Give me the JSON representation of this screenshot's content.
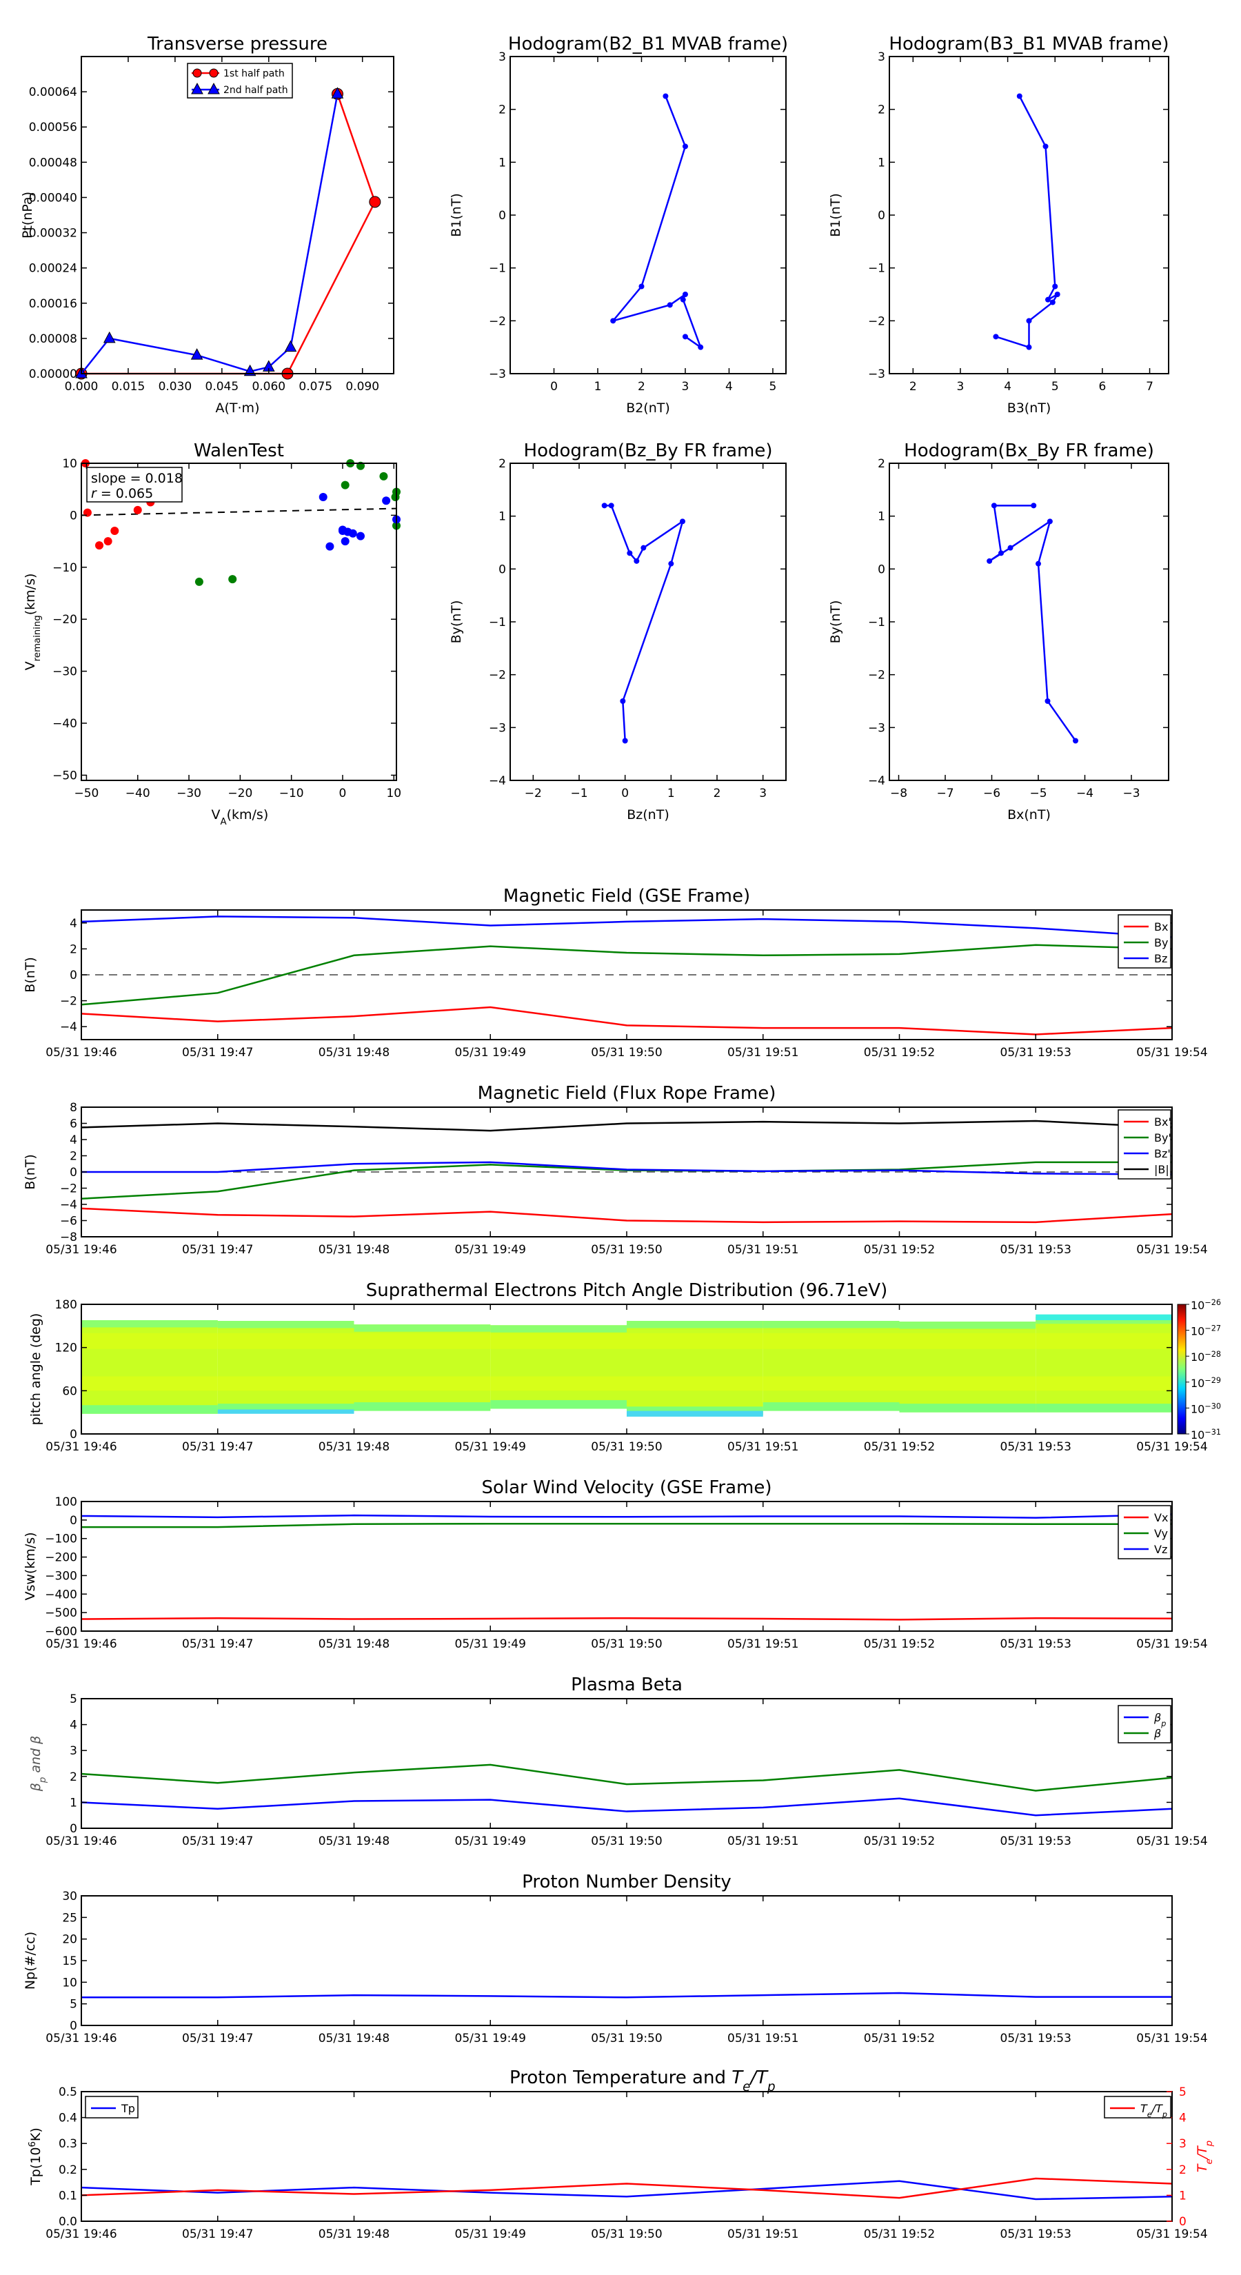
{
  "colors": {
    "red": "#ff0000",
    "green": "#008000",
    "blue": "#0000ff",
    "black": "#000000",
    "gray": "#444444"
  },
  "time_ticks": [
    "05/31 19:46",
    "05/31 19:47",
    "05/31 19:48",
    "05/31 19:49",
    "05/31 19:50",
    "05/31 19:51",
    "05/31 19:52",
    "05/31 19:53",
    "05/31 19:54"
  ],
  "chart_data": [
    {
      "id": "tp",
      "type": "line",
      "title": "Transverse pressure",
      "xlabel": "A(T·m)",
      "ylabel": "Pt(nPa)",
      "xlim": [
        0.0,
        0.1
      ],
      "ylim": [
        0.0,
        0.00072
      ],
      "xticks": [
        "0.000",
        "0.015",
        "0.030",
        "0.045",
        "0.060",
        "0.075",
        "0.090"
      ],
      "xtick_values": [
        0.0,
        0.015,
        0.03,
        0.045,
        0.06,
        0.075,
        0.09
      ],
      "yticks": [
        "0.00000",
        "0.00008",
        "0.00016",
        "0.00024",
        "0.00032",
        "0.00040",
        "0.00048",
        "0.00056",
        "0.00064"
      ],
      "ytick_values": [
        0.0,
        8e-05,
        0.00016,
        0.00024,
        0.00032,
        0.0004,
        0.00048,
        0.00056,
        0.00064
      ],
      "legend": "upper-center",
      "series": [
        {
          "name": "1st half path",
          "color": "#ff0000",
          "marker": "circle",
          "x": [
            0.0,
            0.066,
            0.094,
            0.082
          ],
          "y": [
            0.0,
            0.0,
            0.00039,
            0.000635
          ]
        },
        {
          "name": "2nd half path",
          "color": "#0000ff",
          "marker": "triangle",
          "x": [
            0.082,
            0.067,
            0.06,
            0.054,
            0.037,
            0.009,
            0.0
          ],
          "y": [
            0.000635,
            6e-05,
            1.5e-05,
            5e-06,
            4.2e-05,
            8e-05,
            0.0
          ]
        }
      ]
    },
    {
      "id": "h21",
      "type": "line",
      "title": "Hodogram(B2_B1 MVAB frame)",
      "xlabel": "B2(nT)",
      "ylabel": "B1(nT)",
      "xlim": [
        -1,
        5.3
      ],
      "ylim": [
        -3,
        3
      ],
      "xticks": [
        "0",
        "1",
        "2",
        "3",
        "4",
        "5"
      ],
      "xtick_values": [
        0,
        1,
        2,
        3,
        4,
        5
      ],
      "yticks": [
        "−3",
        "−2",
        "−1",
        "0",
        "1",
        "2",
        "3"
      ],
      "ytick_values": [
        -3,
        -2,
        -1,
        0,
        1,
        2,
        3
      ],
      "series": [
        {
          "color": "#0000ff",
          "marker": "dot",
          "x": [
            2.55,
            3.0,
            2.0,
            1.35,
            2.65,
            3.0,
            2.95,
            3.35,
            3.0
          ],
          "y": [
            2.25,
            1.3,
            -1.35,
            -2.0,
            -1.7,
            -1.5,
            -1.6,
            -2.5,
            -2.3
          ]
        }
      ]
    },
    {
      "id": "h31",
      "type": "line",
      "title": "Hodogram(B3_B1 MVAB frame)",
      "xlabel": "B3(nT)",
      "ylabel": "B1(nT)",
      "xlim": [
        1.5,
        7.4
      ],
      "ylim": [
        -3,
        3
      ],
      "xticks": [
        "2",
        "3",
        "4",
        "5",
        "6",
        "7"
      ],
      "xtick_values": [
        2,
        3,
        4,
        5,
        6,
        7
      ],
      "yticks": [
        "−3",
        "−2",
        "−1",
        "0",
        "1",
        "2",
        "3"
      ],
      "ytick_values": [
        -3,
        -2,
        -1,
        0,
        1,
        2,
        3
      ],
      "series": [
        {
          "color": "#0000ff",
          "marker": "dot",
          "x": [
            4.25,
            4.8,
            5.0,
            4.85,
            5.05,
            4.95,
            4.45,
            4.45,
            3.75
          ],
          "y": [
            2.25,
            1.3,
            -1.35,
            -1.6,
            -1.5,
            -1.65,
            -2.0,
            -2.5,
            -2.3
          ]
        }
      ]
    },
    {
      "id": "walen",
      "type": "scatter",
      "title": "WalenTest",
      "xlabel": "V",
      "xlabel_sub": "A",
      "xlabel_unit": "(km/s)",
      "ylabel": "V",
      "ylabel_sub": "remaining",
      "ylabel_unit": "(km/s)",
      "xlim": [
        -51,
        10.5
      ],
      "ylim": [
        -51,
        10
      ],
      "xticks": [
        "−50",
        "−40",
        "−30",
        "−20",
        "−10",
        "0",
        "10"
      ],
      "xtick_values": [
        -50,
        -40,
        -30,
        -20,
        -10,
        0,
        10
      ],
      "yticks": [
        "−50",
        "−40",
        "−30",
        "−20",
        "−10",
        "0",
        "10"
      ],
      "ytick_values": [
        -50,
        -40,
        -30,
        -20,
        -10,
        0,
        10
      ],
      "annotations": [
        "slope = 0.018",
        "r = 0.065"
      ],
      "fit_line": {
        "x": [
          -51,
          10.5
        ],
        "y": [
          0.0,
          1.3
        ]
      },
      "series": [
        {
          "color": "#ff0000",
          "x": [
            -50.2,
            -49.8,
            -47.5,
            -45.8,
            -44.5,
            -40.0,
            -37.5
          ],
          "y": [
            10.0,
            0.5,
            -5.8,
            -5.0,
            -3.0,
            1.0,
            2.5
          ]
        },
        {
          "color": "#008000",
          "x": [
            -28.0,
            -21.5,
            0.5,
            1.5,
            3.5,
            8.0,
            10.3,
            10.5,
            11.0
          ],
          "y": [
            -12.8,
            -12.3,
            5.8,
            10.0,
            9.5,
            7.5,
            3.5,
            -2.0,
            4.5
          ]
        },
        {
          "color": "#0000ff",
          "x": [
            -3.8,
            -2.5,
            0.0,
            0.5,
            1.0,
            2.0,
            3.5,
            8.5,
            10.5,
            0.0
          ],
          "y": [
            3.5,
            -6.0,
            -3.0,
            -5.0,
            -3.2,
            -3.5,
            -4.0,
            2.8,
            -0.8,
            -2.8
          ]
        }
      ]
    },
    {
      "id": "hzy",
      "type": "line",
      "title": "Hodogram(Bz_By FR frame)",
      "xlabel": "Bz(nT)",
      "ylabel": "By(nT)",
      "xlim": [
        -2.5,
        3.5
      ],
      "ylim": [
        -4,
        2
      ],
      "xticks": [
        "−2",
        "−1",
        "0",
        "1",
        "2",
        "3"
      ],
      "xtick_values": [
        -2,
        -1,
        0,
        1,
        2,
        3
      ],
      "yticks": [
        "−4",
        "−3",
        "−2",
        "−1",
        "0",
        "1",
        "2"
      ],
      "ytick_values": [
        -4,
        -3,
        -2,
        -1,
        0,
        1,
        2
      ],
      "series": [
        {
          "color": "#0000ff",
          "marker": "dot",
          "x": [
            -0.45,
            -0.3,
            0.1,
            0.25,
            0.4,
            1.25,
            1.0,
            -0.05,
            -0.0
          ],
          "y": [
            1.2,
            1.2,
            0.3,
            0.15,
            0.4,
            0.9,
            0.1,
            -2.5,
            -3.25
          ]
        }
      ]
    },
    {
      "id": "hxy",
      "type": "line",
      "title": "Hodogram(Bx_By FR frame)",
      "xlabel": "Bx(nT)",
      "ylabel": "By(nT)",
      "xlim": [
        -8.2,
        -2.2
      ],
      "ylim": [
        -4,
        2
      ],
      "xticks": [
        "−8",
        "−7",
        "−6",
        "−5",
        "−4",
        "−3"
      ],
      "xtick_values": [
        -8,
        -7,
        -6,
        -5,
        -4,
        -3
      ],
      "yticks": [
        "−4",
        "−3",
        "−2",
        "−1",
        "0",
        "1",
        "2"
      ],
      "ytick_values": [
        -4,
        -3,
        -2,
        -1,
        0,
        1,
        2
      ],
      "series": [
        {
          "color": "#0000ff",
          "marker": "dot",
          "x": [
            -5.1,
            -5.95,
            -5.8,
            -6.05,
            -5.6,
            -4.75,
            -5.0,
            -4.8,
            -4.2
          ],
          "y": [
            1.2,
            1.2,
            0.3,
            0.15,
            0.4,
            0.9,
            0.1,
            -2.5,
            -3.25
          ]
        }
      ]
    },
    {
      "id": "mfgse",
      "type": "line",
      "title": "Magnetic Field (GSE Frame)",
      "ylabel": "B(nT)",
      "ylim": [
        -5,
        5
      ],
      "yticks": [
        "−4",
        "−2",
        "0",
        "2",
        "4"
      ],
      "ytick_values": [
        -4,
        -2,
        0,
        2,
        4
      ],
      "zero_line": true,
      "legend": "right",
      "series": [
        {
          "name": "Bx",
          "color": "#ff0000",
          "values": [
            -3.0,
            -3.6,
            -3.2,
            -2.5,
            -3.9,
            -4.1,
            -4.1,
            -4.6,
            -4.1
          ]
        },
        {
          "name": "By",
          "color": "#008000",
          "values": [
            -2.3,
            -1.4,
            1.5,
            2.2,
            1.7,
            1.5,
            1.6,
            2.3,
            2.0
          ]
        },
        {
          "name": "Bz",
          "color": "#0000ff",
          "values": [
            4.1,
            4.5,
            4.4,
            3.8,
            4.1,
            4.3,
            4.1,
            3.6,
            2.9
          ]
        }
      ]
    },
    {
      "id": "mffr",
      "type": "line",
      "title": "Magnetic Field (Flux Rope Frame)",
      "ylabel": "B(nT)",
      "ylim": [
        -8,
        8
      ],
      "yticks": [
        "−8",
        "−6",
        "−4",
        "−2",
        "0",
        "2",
        "4",
        "6",
        "8"
      ],
      "ytick_values": [
        -8,
        -6,
        -4,
        -2,
        0,
        2,
        4,
        6,
        8
      ],
      "zero_line": true,
      "legend": "right",
      "series": [
        {
          "name": "Bx'",
          "color": "#ff0000",
          "values": [
            -4.5,
            -5.3,
            -5.5,
            -4.9,
            -6.0,
            -6.2,
            -6.1,
            -6.2,
            -5.2
          ]
        },
        {
          "name": "By'",
          "color": "#008000",
          "values": [
            -3.3,
            -2.4,
            0.2,
            0.9,
            0.2,
            0.1,
            0.3,
            1.2,
            1.2
          ]
        },
        {
          "name": "Bz'",
          "color": "#0000ff",
          "values": [
            0.0,
            0.0,
            1.0,
            1.2,
            0.3,
            0.1,
            0.2,
            -0.2,
            -0.3
          ]
        },
        {
          "name": "|B|",
          "color": "#000000",
          "values": [
            5.5,
            6.0,
            5.6,
            5.1,
            6.0,
            6.2,
            6.0,
            6.3,
            5.5
          ]
        }
      ]
    },
    {
      "id": "pad",
      "type": "heatmap",
      "title": "Suprathermal Electrons Pitch Angle Distribution (96.71eV)",
      "ylabel": "pitch angle (deg)",
      "ylim": [
        0,
        180
      ],
      "yticks": [
        "0",
        "60",
        "120",
        "180"
      ],
      "ytick_values": [
        0,
        60,
        120,
        180
      ],
      "colorbar": {
        "ticks": [
          "10",
          "10",
          "10",
          "10",
          "10",
          "10"
        ],
        "exponents": [
          "−26",
          "−27",
          "−28",
          "−29",
          "−30",
          "−31"
        ]
      }
    },
    {
      "id": "vsw",
      "type": "line",
      "title": "Solar Wind Velocity (GSE Frame)",
      "ylabel": "Vsw(km/s)",
      "ylim": [
        -600,
        100
      ],
      "yticks": [
        "−600",
        "−500",
        "−400",
        "−300",
        "−200",
        "−100",
        "0",
        "100"
      ],
      "ytick_values": [
        -600,
        -500,
        -400,
        -300,
        -200,
        -100,
        0,
        100
      ],
      "legend": "right",
      "series": [
        {
          "name": "Vx",
          "color": "#ff0000",
          "values": [
            -535,
            -530,
            -535,
            -533,
            -530,
            -533,
            -538,
            -530,
            -532
          ]
        },
        {
          "name": "Vy",
          "color": "#008000",
          "values": [
            -38,
            -38,
            -22,
            -20,
            -20,
            -20,
            -20,
            -22,
            -22
          ]
        },
        {
          "name": "Vz",
          "color": "#0000ff",
          "values": [
            22,
            15,
            25,
            18,
            17,
            20,
            20,
            12,
            30
          ]
        }
      ]
    },
    {
      "id": "beta",
      "type": "line",
      "title": "Plasma Beta",
      "ylabel": "β",
      "ylabel_sub": "p",
      "ylabel_rest": " and β",
      "ylim": [
        0,
        5
      ],
      "yticks": [
        "0",
        "1",
        "2",
        "3",
        "4",
        "5"
      ],
      "ytick_values": [
        0,
        1,
        2,
        3,
        4,
        5
      ],
      "legend": "upper-right",
      "series": [
        {
          "name": "β",
          "name_sub": "p",
          "color": "#0000ff",
          "values": [
            1.0,
            0.75,
            1.05,
            1.1,
            0.65,
            0.8,
            1.15,
            0.5,
            0.75
          ]
        },
        {
          "name": "β",
          "color": "#008000",
          "values": [
            2.1,
            1.75,
            2.15,
            2.45,
            1.7,
            1.85,
            2.25,
            1.45,
            1.95
          ]
        }
      ]
    },
    {
      "id": "np",
      "type": "line",
      "title": "Proton Number Density",
      "ylabel": "Np(#/cc)",
      "ylim": [
        0,
        30
      ],
      "yticks": [
        "0",
        "5",
        "10",
        "15",
        "20",
        "25",
        "30"
      ],
      "ytick_values": [
        0,
        5,
        10,
        15,
        20,
        25,
        30
      ],
      "series": [
        {
          "color": "#0000ff",
          "values": [
            6.5,
            6.5,
            7.0,
            6.8,
            6.5,
            7.0,
            7.5,
            6.6,
            6.6
          ]
        }
      ]
    },
    {
      "id": "tpt",
      "type": "line",
      "title": "Proton Temperature and ",
      "title_math": "T",
      "title_math_sub": "e",
      "title_math_rest": "/T",
      "title_math_sub2": "p",
      "ylabel": "Tp(10",
      "ylabel_sup": "6",
      "ylabel_rest": "K)",
      "ylim": [
        0,
        0.5
      ],
      "yticks": [
        "0.0",
        "0.1",
        "0.2",
        "0.3",
        "0.4",
        "0.5"
      ],
      "ytick_values": [
        0,
        0.1,
        0.2,
        0.3,
        0.4,
        0.5
      ],
      "y2label": "T",
      "y2label_sub": "e",
      "y2label_rest": "/T",
      "y2label_sub2": "p",
      "y2lim": [
        0,
        5
      ],
      "y2ticks": [
        "0",
        "1",
        "2",
        "3",
        "4",
        "5"
      ],
      "y2tick_values": [
        0,
        1,
        2,
        3,
        4,
        5
      ],
      "legend": "upper-left",
      "legend2": "upper-right",
      "series": [
        {
          "name": "Tp",
          "color": "#0000ff",
          "axis": "left",
          "values": [
            0.13,
            0.11,
            0.13,
            0.11,
            0.095,
            0.125,
            0.155,
            0.085,
            0.095
          ]
        },
        {
          "name": "T",
          "name_sub": "e",
          "name_rest": "/T",
          "name_sub2": "p",
          "color": "#ff0000",
          "axis": "right",
          "values": [
            1.0,
            1.2,
            1.05,
            1.2,
            1.45,
            1.2,
            0.9,
            1.65,
            1.45
          ]
        }
      ]
    }
  ]
}
